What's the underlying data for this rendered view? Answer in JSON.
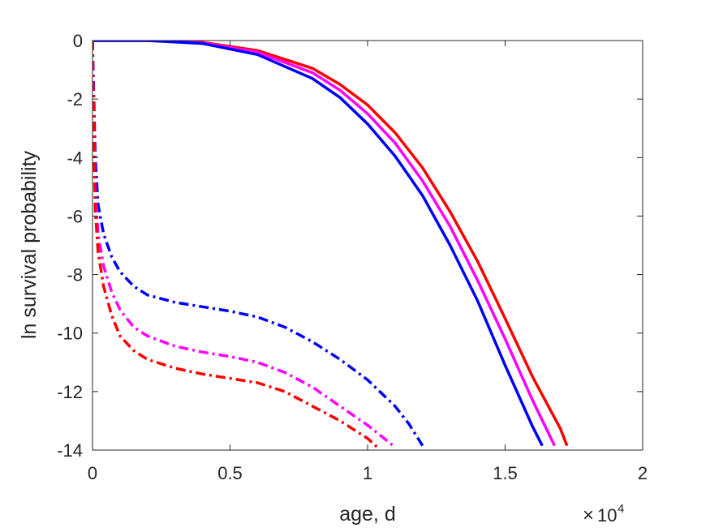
{
  "chart_data": {
    "type": "line",
    "xlabel": "age, d",
    "ylabel": "ln survival probability",
    "xlim": [
      0,
      20000
    ],
    "ylim": [
      -14,
      0
    ],
    "x_exponent": {
      "base": "10",
      "power": "4",
      "times": "×"
    },
    "x_ticks": [
      {
        "value": 0,
        "label": "0"
      },
      {
        "value": 5000,
        "label": "0.5"
      },
      {
        "value": 10000,
        "label": "1"
      },
      {
        "value": 15000,
        "label": "1.5"
      },
      {
        "value": 20000,
        "label": "2"
      }
    ],
    "y_ticks": [
      {
        "value": 0,
        "label": "0"
      },
      {
        "value": -2,
        "label": "-2"
      },
      {
        "value": -4,
        "label": "-4"
      },
      {
        "value": -6,
        "label": "-6"
      },
      {
        "value": -8,
        "label": "-8"
      },
      {
        "value": -10,
        "label": "-10"
      },
      {
        "value": -12,
        "label": "-12"
      },
      {
        "value": -14,
        "label": "-14"
      }
    ],
    "grid": false,
    "series": [
      {
        "style": "solid",
        "color": "#ff0000",
        "points": [
          [
            0,
            0
          ],
          [
            2000,
            0
          ],
          [
            4000,
            -0.06
          ],
          [
            6000,
            -0.34
          ],
          [
            8000,
            -0.95
          ],
          [
            9000,
            -1.5
          ],
          [
            10000,
            -2.2
          ],
          [
            11000,
            -3.15
          ],
          [
            12000,
            -4.35
          ],
          [
            13000,
            -5.85
          ],
          [
            14000,
            -7.55
          ],
          [
            15000,
            -9.5
          ],
          [
            16000,
            -11.5
          ],
          [
            17000,
            -13.25
          ],
          [
            17250,
            -13.85
          ]
        ]
      },
      {
        "style": "solid",
        "color": "#ff00ff",
        "points": [
          [
            0,
            0
          ],
          [
            2000,
            0
          ],
          [
            4000,
            -0.08
          ],
          [
            6000,
            -0.4
          ],
          [
            8000,
            -1.1
          ],
          [
            9000,
            -1.7
          ],
          [
            10000,
            -2.5
          ],
          [
            11000,
            -3.5
          ],
          [
            12000,
            -4.8
          ],
          [
            13000,
            -6.35
          ],
          [
            14000,
            -8.2
          ],
          [
            15000,
            -10.2
          ],
          [
            16000,
            -12.3
          ],
          [
            16800,
            -13.85
          ]
        ]
      },
      {
        "style": "solid",
        "color": "#0000ff",
        "points": [
          [
            0,
            0
          ],
          [
            2000,
            0
          ],
          [
            4000,
            -0.1
          ],
          [
            6000,
            -0.48
          ],
          [
            8000,
            -1.3
          ],
          [
            9000,
            -1.95
          ],
          [
            10000,
            -2.85
          ],
          [
            11000,
            -3.95
          ],
          [
            12000,
            -5.3
          ],
          [
            13000,
            -7.0
          ],
          [
            14000,
            -8.9
          ],
          [
            15000,
            -11.1
          ],
          [
            16000,
            -13.2
          ],
          [
            16350,
            -13.85
          ]
        ]
      },
      {
        "style": "dashdot",
        "color": "#0000ff",
        "points": [
          [
            0,
            0
          ],
          [
            50,
            -2
          ],
          [
            100,
            -4
          ],
          [
            200,
            -5.6
          ],
          [
            400,
            -6.6
          ],
          [
            700,
            -7.4
          ],
          [
            1000,
            -7.9
          ],
          [
            1500,
            -8.4
          ],
          [
            2000,
            -8.7
          ],
          [
            3000,
            -8.95
          ],
          [
            4000,
            -9.1
          ],
          [
            5000,
            -9.25
          ],
          [
            6000,
            -9.45
          ],
          [
            7000,
            -9.8
          ],
          [
            8000,
            -10.3
          ],
          [
            9000,
            -10.9
          ],
          [
            10000,
            -11.6
          ],
          [
            11000,
            -12.5
          ],
          [
            11500,
            -13.1
          ],
          [
            12000,
            -13.85
          ]
        ]
      },
      {
        "style": "dashdot",
        "color": "#ff00ff",
        "points": [
          [
            0,
            0
          ],
          [
            50,
            -3
          ],
          [
            100,
            -5.2
          ],
          [
            200,
            -6.6
          ],
          [
            400,
            -7.7
          ],
          [
            700,
            -8.6
          ],
          [
            1000,
            -9.2
          ],
          [
            1500,
            -9.8
          ],
          [
            2000,
            -10.1
          ],
          [
            3000,
            -10.45
          ],
          [
            4000,
            -10.65
          ],
          [
            5000,
            -10.8
          ],
          [
            6000,
            -11.0
          ],
          [
            7000,
            -11.35
          ],
          [
            8000,
            -11.85
          ],
          [
            9000,
            -12.5
          ],
          [
            10000,
            -13.15
          ],
          [
            11000,
            -13.9
          ]
        ]
      },
      {
        "style": "dashdot",
        "color": "#ff0000",
        "points": [
          [
            0,
            0
          ],
          [
            50,
            -3.5
          ],
          [
            100,
            -5.8
          ],
          [
            200,
            -7.2
          ],
          [
            400,
            -8.4
          ],
          [
            700,
            -9.4
          ],
          [
            1000,
            -10.1
          ],
          [
            1500,
            -10.6
          ],
          [
            2000,
            -10.9
          ],
          [
            3000,
            -11.2
          ],
          [
            4000,
            -11.4
          ],
          [
            5000,
            -11.55
          ],
          [
            6000,
            -11.7
          ],
          [
            7000,
            -12.0
          ],
          [
            8000,
            -12.5
          ],
          [
            9000,
            -13.0
          ],
          [
            10000,
            -13.6
          ],
          [
            10350,
            -13.9
          ]
        ]
      }
    ]
  }
}
